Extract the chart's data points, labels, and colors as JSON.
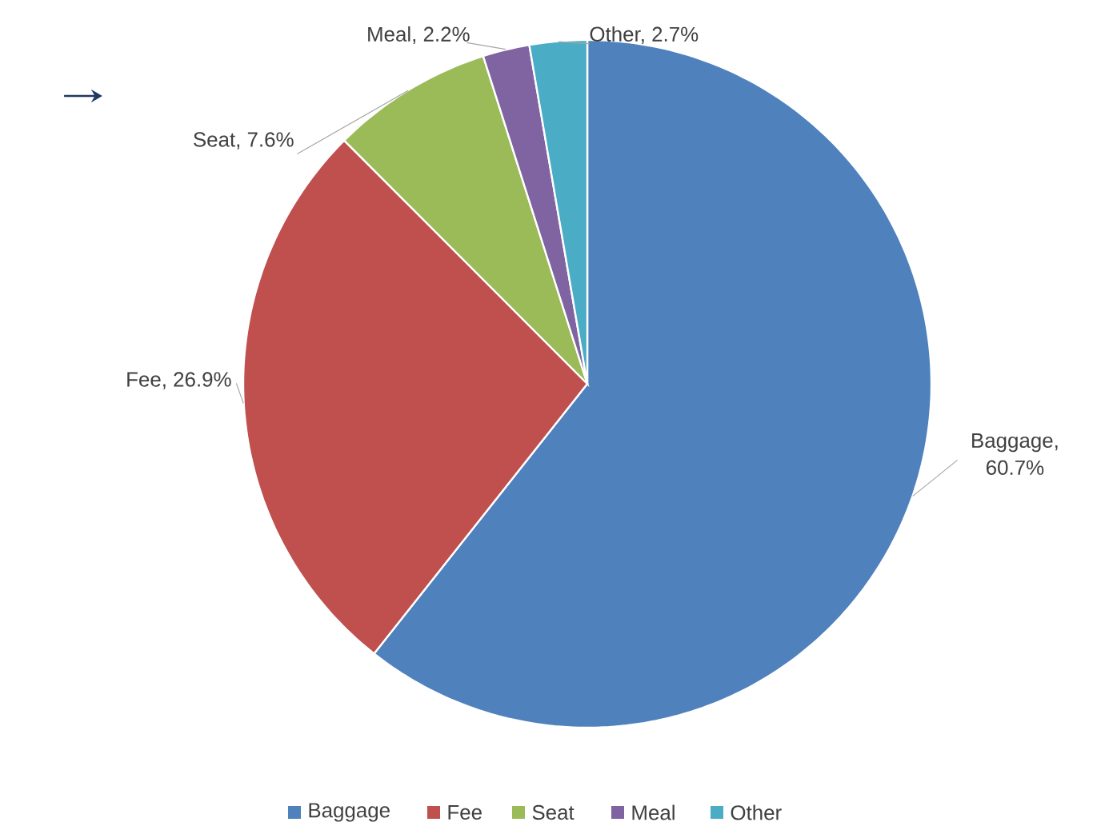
{
  "chart_data": {
    "type": "pie",
    "categories": [
      "Baggage",
      "Fee",
      "Seat",
      "Meal",
      "Other"
    ],
    "values": [
      60.7,
      26.9,
      7.6,
      2.2,
      2.7
    ],
    "colors": [
      "#4f81bd",
      "#c0504d",
      "#9bbb59",
      "#8064a2",
      "#4bacc6"
    ],
    "value_labels": [
      "Baggage, 60.7%",
      "Fee, 26.9%",
      "Seat, 7.6%",
      "Meal, 2.2%",
      "Other, 2.7%"
    ],
    "legend": "bottom"
  }
}
